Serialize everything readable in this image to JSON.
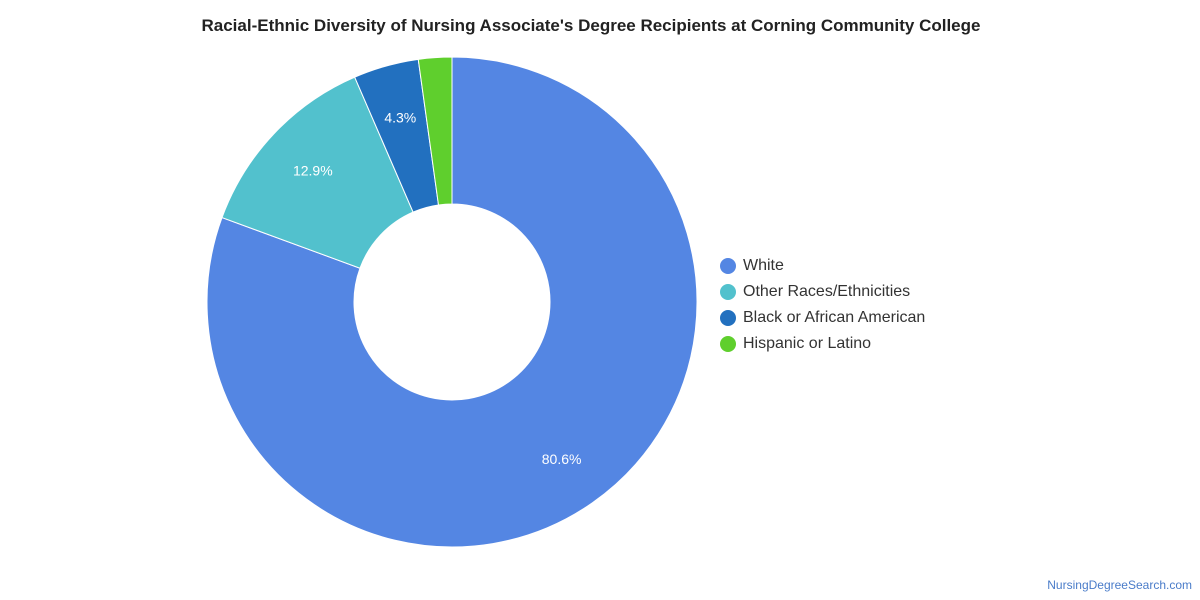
{
  "colors": {
    "white": "#5486e3",
    "other": "#52c1cd",
    "black": "#2270bf",
    "hispanic": "#5fcf2d"
  },
  "chart_data": {
    "type": "pie",
    "donut": true,
    "title": "Racial-Ethnic Diversity of Nursing Associate's Degree Recipients at Corning Community College",
    "legend_position": "right",
    "series": [
      {
        "name": "White",
        "value": 80.6,
        "label": "80.6%",
        "color": "#5486e3"
      },
      {
        "name": "Other Races/Ethnicities",
        "value": 12.9,
        "label": "12.9%",
        "color": "#52c1cd"
      },
      {
        "name": "Black or African American",
        "value": 4.3,
        "label": "4.3%",
        "color": "#2270bf"
      },
      {
        "name": "Hispanic or Latino",
        "value": 2.2,
        "label": "",
        "color": "#5fcf2d"
      }
    ]
  },
  "source": "NursingDegreeSearch.com"
}
